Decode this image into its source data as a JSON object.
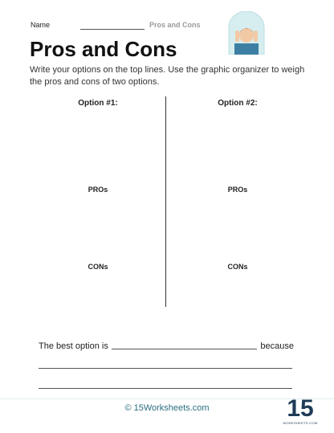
{
  "header": {
    "name_label": "Name",
    "title": "Pros and Cons"
  },
  "title": "Pros and Cons",
  "instructions": "Write your options on the top lines. Use the graphic organizer to weigh the pros and cons of two options.",
  "columns": [
    {
      "option": "Option #1:",
      "pros": "PROs",
      "cons": "CONs"
    },
    {
      "option": "Option #2:",
      "pros": "PROs",
      "cons": "CONs"
    }
  ],
  "conclusion": {
    "prefix": "The best option is",
    "suffix": "because"
  },
  "footer": "© 15Worksheets.com",
  "logo": {
    "number": "15",
    "text": "WORKSHEETS.COM"
  }
}
